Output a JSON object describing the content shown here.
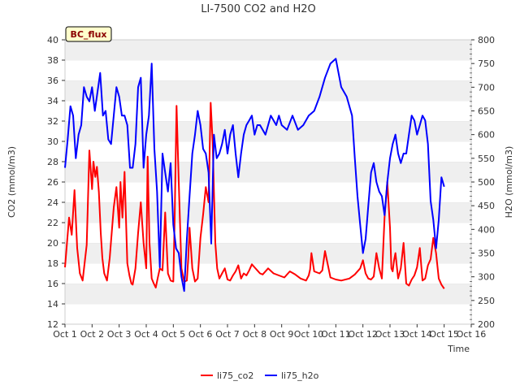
{
  "chart_data": {
    "type": "line",
    "title": "LI-7500 CO2 and H2O",
    "badge": "BC_flux",
    "xlabel": "Time",
    "ylabel_left": "CO2 (mmol/m3)",
    "ylabel_right": "H2O (mmol/m3)",
    "x_range": [
      1,
      16
    ],
    "x_ticks": [
      {
        "v": 1,
        "label": "Oct 1"
      },
      {
        "v": 2,
        "label": "Oct 2"
      },
      {
        "v": 3,
        "label": "Oct 3"
      },
      {
        "v": 4,
        "label": "Oct 4"
      },
      {
        "v": 5,
        "label": "Oct 5"
      },
      {
        "v": 6,
        "label": "Oct 6"
      },
      {
        "v": 7,
        "label": "Oct 7"
      },
      {
        "v": 8,
        "label": "Oct 8"
      },
      {
        "v": 9,
        "label": "Oct 9"
      },
      {
        "v": 10,
        "label": "Oct 10"
      },
      {
        "v": 11,
        "label": "Oct 11"
      },
      {
        "v": 12,
        "label": "Oct 12"
      },
      {
        "v": 13,
        "label": "Oct 13"
      },
      {
        "v": 14,
        "label": "Oct 14"
      },
      {
        "v": 15,
        "label": "Oct 15"
      },
      {
        "v": 16,
        "label": "Oct 16"
      }
    ],
    "ylim_left": [
      12,
      40
    ],
    "yticks_left": [
      12,
      14,
      16,
      18,
      20,
      22,
      24,
      26,
      28,
      30,
      32,
      34,
      36,
      38,
      40
    ],
    "ylim_right": [
      200,
      800
    ],
    "yticks_right": [
      200,
      250,
      300,
      350,
      400,
      450,
      500,
      550,
      600,
      650,
      700,
      750,
      800
    ],
    "grid": "horizontal bands",
    "legend_position": "bottom",
    "series": [
      {
        "name": "li75_co2",
        "axis": "left",
        "color": "#ff0000",
        "x": [
          1.0,
          1.15,
          1.25,
          1.35,
          1.45,
          1.55,
          1.65,
          1.8,
          1.9,
          2.0,
          2.05,
          2.12,
          2.18,
          2.25,
          2.32,
          2.38,
          2.45,
          2.55,
          2.65,
          2.8,
          2.9,
          3.0,
          3.05,
          3.12,
          3.2,
          3.3,
          3.38,
          3.45,
          3.5,
          3.6,
          3.7,
          3.8,
          3.9,
          4.0,
          4.05,
          4.12,
          4.2,
          4.28,
          4.35,
          4.42,
          4.5,
          4.6,
          4.7,
          4.8,
          4.9,
          5.0,
          5.05,
          5.12,
          5.2,
          5.3,
          5.4,
          5.5,
          5.55,
          5.6,
          5.7,
          5.8,
          5.9,
          6.0,
          6.1,
          6.2,
          6.3,
          6.38,
          6.45,
          6.5,
          6.55,
          6.62,
          6.7,
          6.8,
          6.9,
          7.0,
          7.1,
          7.2,
          7.3,
          7.4,
          7.5,
          7.6,
          7.7,
          7.8,
          7.9,
          8.0,
          8.1,
          8.2,
          8.3,
          8.5,
          8.7,
          8.9,
          9.1,
          9.3,
          9.5,
          9.7,
          9.9,
          10.0,
          10.05,
          10.1,
          10.2,
          10.4,
          10.5,
          10.6,
          10.8,
          11.0,
          11.2,
          11.5,
          11.7,
          11.9,
          12.0,
          12.1,
          12.2,
          12.3,
          12.4,
          12.5,
          12.6,
          12.7,
          12.8,
          12.9,
          13.0,
          13.05,
          13.1,
          13.15,
          13.2,
          13.3,
          13.4,
          13.5,
          13.6,
          13.7,
          13.8,
          13.9,
          14.0,
          14.1,
          14.2,
          14.3,
          14.4,
          14.5,
          14.6,
          14.7,
          14.8,
          14.9,
          15.0
        ],
        "y": [
          17.6,
          22.5,
          20.8,
          25.2,
          19.5,
          17.0,
          16.3,
          19.8,
          29.1,
          25.3,
          28.0,
          26.5,
          27.5,
          25.0,
          21.0,
          18.5,
          17.0,
          16.3,
          18.5,
          23.5,
          25.5,
          21.5,
          26.0,
          22.5,
          27.0,
          18.0,
          16.8,
          16.0,
          15.9,
          17.5,
          21.0,
          24.0,
          20.0,
          17.5,
          28.5,
          20.0,
          16.5,
          16.0,
          15.6,
          16.5,
          17.5,
          17.3,
          23.0,
          17.0,
          16.3,
          16.2,
          22.5,
          33.5,
          26.0,
          17.5,
          16.2,
          16.3,
          18.5,
          21.5,
          17.5,
          16.2,
          16.5,
          20.5,
          22.8,
          25.5,
          24.0,
          33.8,
          30.0,
          25.0,
          20.0,
          17.5,
          16.5,
          17.0,
          17.5,
          16.4,
          16.3,
          16.8,
          17.2,
          17.8,
          16.5,
          17.0,
          16.8,
          17.3,
          17.9,
          17.6,
          17.3,
          17.0,
          16.9,
          17.5,
          17.0,
          16.8,
          16.6,
          17.2,
          16.9,
          16.5,
          16.3,
          16.8,
          17.4,
          19.0,
          17.2,
          17.0,
          17.3,
          19.2,
          16.6,
          16.4,
          16.3,
          16.5,
          16.9,
          17.5,
          18.3,
          17.0,
          16.5,
          16.4,
          16.7,
          19.0,
          17.5,
          16.5,
          22.5,
          26.0,
          21.5,
          17.5,
          17.2,
          18.3,
          19.0,
          16.5,
          17.5,
          20.0,
          16.0,
          15.8,
          16.4,
          16.8,
          17.6,
          19.5,
          16.3,
          16.5,
          17.8,
          18.4,
          20.5,
          19.0,
          16.5,
          15.9,
          15.5
        ],
        "peaks_note": ""
      },
      {
        "name": "li75_h2o",
        "axis": "right",
        "color": "#0000ff",
        "x": [
          1.0,
          1.1,
          1.2,
          1.3,
          1.4,
          1.5,
          1.6,
          1.7,
          1.8,
          1.9,
          2.0,
          2.1,
          2.2,
          2.3,
          2.4,
          2.5,
          2.6,
          2.7,
          2.8,
          2.9,
          3.0,
          3.1,
          3.2,
          3.3,
          3.4,
          3.5,
          3.6,
          3.7,
          3.8,
          3.9,
          4.0,
          4.1,
          4.2,
          4.3,
          4.4,
          4.5,
          4.6,
          4.7,
          4.8,
          4.9,
          5.0,
          5.1,
          5.2,
          5.3,
          5.4,
          5.5,
          5.6,
          5.7,
          5.8,
          5.9,
          6.0,
          6.1,
          6.2,
          6.3,
          6.4,
          6.5,
          6.6,
          6.7,
          6.8,
          6.9,
          7.0,
          7.1,
          7.2,
          7.3,
          7.4,
          7.5,
          7.6,
          7.7,
          7.8,
          7.9,
          8.0,
          8.1,
          8.2,
          8.3,
          8.4,
          8.5,
          8.6,
          8.7,
          8.8,
          8.9,
          9.0,
          9.2,
          9.4,
          9.6,
          9.8,
          10.0,
          10.2,
          10.4,
          10.6,
          10.8,
          11.0,
          11.2,
          11.4,
          11.5,
          11.6,
          11.7,
          11.8,
          11.9,
          12.0,
          12.1,
          12.2,
          12.3,
          12.4,
          12.5,
          12.6,
          12.7,
          12.8,
          12.9,
          13.0,
          13.1,
          13.2,
          13.3,
          13.4,
          13.5,
          13.6,
          13.7,
          13.8,
          13.9,
          14.0,
          14.1,
          14.2,
          14.3,
          14.4,
          14.5,
          14.6,
          14.7,
          14.8,
          14.9,
          15.0
        ],
        "y": [
          530,
          590,
          660,
          640,
          550,
          600,
          620,
          700,
          680,
          670,
          700,
          650,
          690,
          730,
          640,
          650,
          590,
          580,
          640,
          700,
          680,
          640,
          640,
          620,
          530,
          530,
          580,
          700,
          720,
          530,
          600,
          640,
          750,
          570,
          480,
          320,
          560,
          520,
          480,
          540,
          410,
          360,
          350,
          300,
          270,
          380,
          470,
          560,
          600,
          650,
          620,
          570,
          560,
          520,
          370,
          600,
          550,
          560,
          580,
          610,
          560,
          600,
          620,
          560,
          510,
          560,
          600,
          620,
          630,
          640,
          600,
          620,
          620,
          610,
          600,
          620,
          640,
          630,
          620,
          640,
          620,
          610,
          640,
          610,
          620,
          640,
          650,
          680,
          720,
          750,
          760,
          700,
          680,
          660,
          640,
          550,
          470,
          410,
          350,
          380,
          450,
          520,
          540,
          500,
          480,
          470,
          430,
          500,
          550,
          580,
          600,
          560,
          540,
          560,
          560,
          600,
          640,
          630,
          600,
          620,
          640,
          630,
          580,
          460,
          420,
          360,
          420,
          510,
          490
        ]
      }
    ]
  }
}
